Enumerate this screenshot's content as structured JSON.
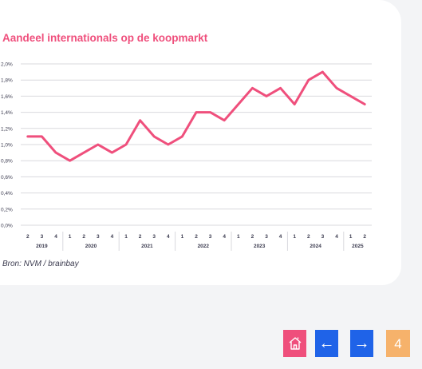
{
  "colors": {
    "line": "#ef4f7c",
    "title": "#ef4f7c",
    "grid": "#d9d9de",
    "axis_text": "#3b3b4f",
    "home_button": "#ef4f7c",
    "arrow_button": "#1f63e8",
    "page_badge": "#f6b26b"
  },
  "chart_data": {
    "type": "line",
    "title": "Aandeel internationals op de koopmarkt",
    "xlabel": "",
    "ylabel": "",
    "ylim": [
      0,
      2.0
    ],
    "yticks": [
      "0,0%",
      "0,2%",
      "0,4%",
      "0,6%",
      "0,8%",
      "1,0%",
      "1,2%",
      "1,4%",
      "1,6%",
      "1,8%",
      "2,0%"
    ],
    "grid": true,
    "legend": "none",
    "x": [
      "2019-Q2",
      "2019-Q3",
      "2019-Q4",
      "2020-Q1",
      "2020-Q2",
      "2020-Q3",
      "2020-Q4",
      "2021-Q1",
      "2021-Q2",
      "2021-Q3",
      "2021-Q4",
      "2022-Q1",
      "2022-Q2",
      "2022-Q3",
      "2022-Q4",
      "2023-Q1",
      "2023-Q2",
      "2023-Q3",
      "2023-Q4",
      "2024-Q1",
      "2024-Q2",
      "2024-Q3",
      "2024-Q4",
      "2025-Q1",
      "2025-Q2"
    ],
    "quarter_labels": [
      "2",
      "3",
      "4",
      "1",
      "2",
      "3",
      "4",
      "1",
      "2",
      "3",
      "4",
      "1",
      "2",
      "3",
      "4",
      "1",
      "2",
      "3",
      "4",
      "1",
      "2",
      "3",
      "4",
      "1",
      "2"
    ],
    "year_groups": [
      {
        "label": "2019",
        "count": 3
      },
      {
        "label": "2020",
        "count": 4
      },
      {
        "label": "2021",
        "count": 4
      },
      {
        "label": "2022",
        "count": 4
      },
      {
        "label": "2023",
        "count": 4
      },
      {
        "label": "2024",
        "count": 4
      },
      {
        "label": "2025",
        "count": 2
      }
    ],
    "series": [
      {
        "values": [
          1.1,
          1.1,
          0.9,
          0.8,
          0.9,
          1.0,
          0.9,
          1.0,
          1.3,
          1.1,
          1.0,
          1.1,
          1.4,
          1.4,
          1.3,
          1.5,
          1.7,
          1.6,
          1.7,
          1.5,
          1.8,
          1.9,
          1.7,
          1.6,
          1.5
        ]
      }
    ]
  },
  "source_text": "Bron: NVM / brainbay",
  "nav": {
    "home_icon": "home-icon",
    "prev_icon": "arrow-left-icon",
    "next_icon": "arrow-right-icon",
    "prev_glyph": "←",
    "next_glyph": "→",
    "page_number": "4"
  }
}
